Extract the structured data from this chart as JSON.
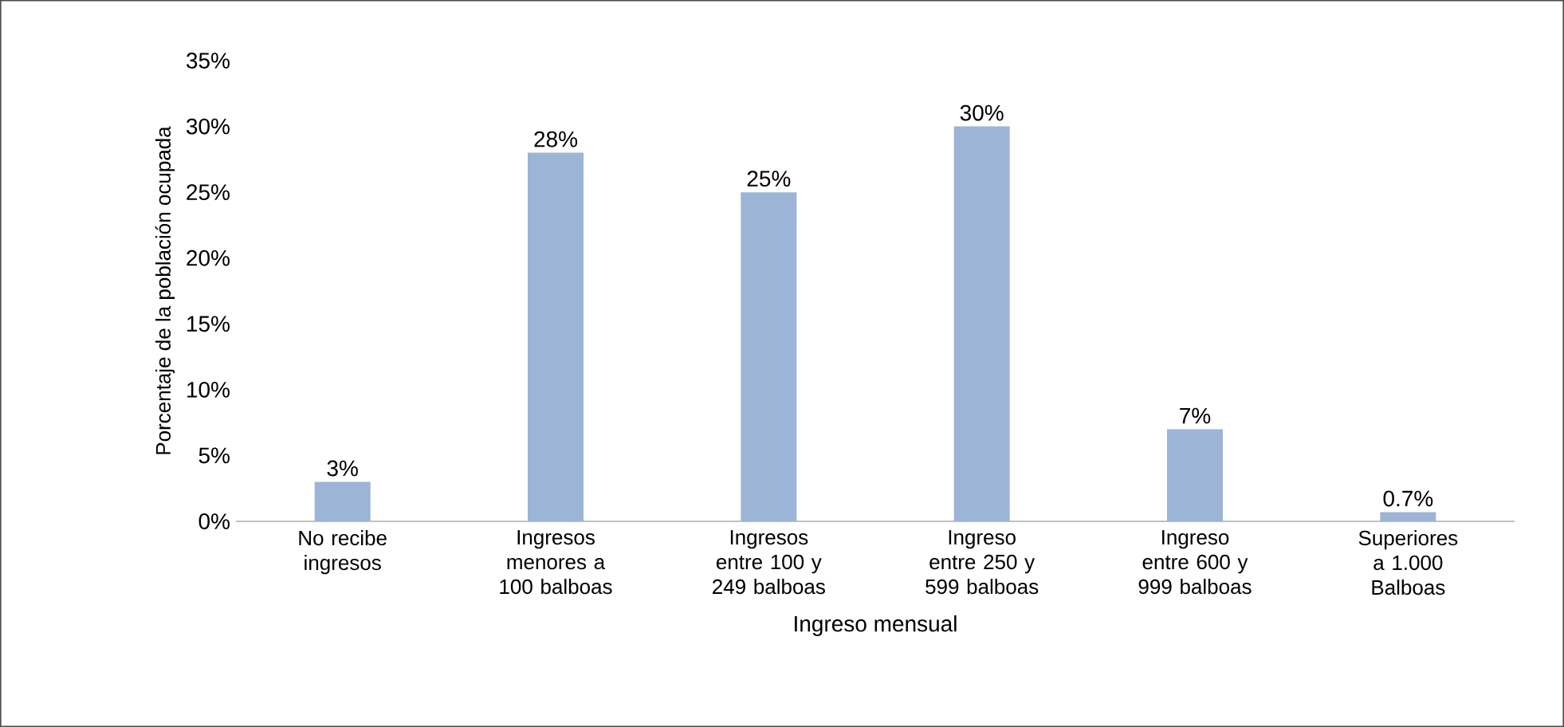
{
  "chart_data": {
    "type": "bar",
    "categories": [
      "No recibe ingresos",
      "Ingresos menores a 100 balboas",
      "Ingresos entre 100 y 249 balboas",
      "Ingreso entre 250 y 599 balboas",
      "Ingreso entre 600 y 999 balboas",
      "Superiores a 1.000 Balboas"
    ],
    "values": [
      3,
      28,
      25,
      30,
      7,
      0.7
    ],
    "value_labels": [
      "3%",
      "28%",
      "25%",
      "30%",
      "7%",
      "0.7%"
    ],
    "color": "#9cb4d5",
    "xlabel": "Ingreso mensual",
    "ylabel": "Porcentaje de la población ocupada",
    "ylim": [
      0,
      35
    ],
    "yticks": [
      {
        "value": 0,
        "label": "0%"
      },
      {
        "value": 5,
        "label": "5%"
      },
      {
        "value": 10,
        "label": "10%"
      },
      {
        "value": 15,
        "label": "15%"
      },
      {
        "value": 20,
        "label": "20%"
      },
      {
        "value": 25,
        "label": "25%"
      },
      {
        "value": 30,
        "label": "30%"
      },
      {
        "value": 35,
        "label": "35%"
      }
    ],
    "grid": false
  }
}
